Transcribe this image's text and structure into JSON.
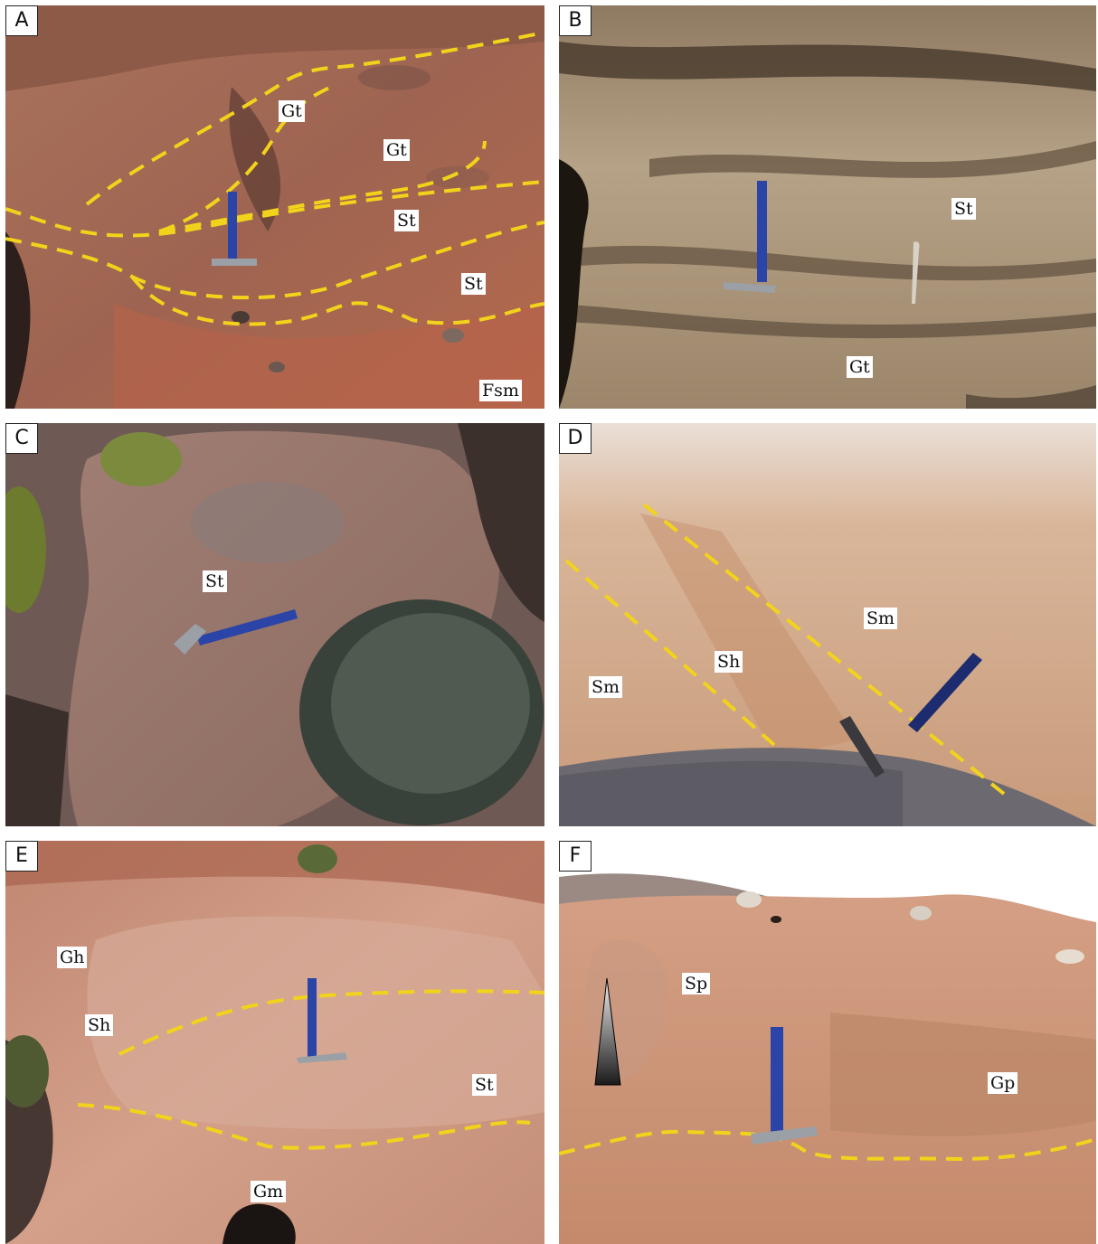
{
  "colors": {
    "contact_line": "#f2d31b",
    "label_background": "#ffffff"
  },
  "panels": [
    {
      "letter": "A",
      "labels": [
        "Gt",
        "Gt",
        "St",
        "St",
        "Fsm"
      ]
    },
    {
      "letter": "B",
      "labels": [
        "St",
        "Gt"
      ]
    },
    {
      "letter": "C",
      "labels": [
        "St"
      ]
    },
    {
      "letter": "D",
      "labels": [
        "Sm",
        "Sh",
        "Sm"
      ]
    },
    {
      "letter": "E",
      "labels": [
        "Gh",
        "Sh",
        "St",
        "Gm"
      ]
    },
    {
      "letter": "F",
      "labels": [
        "Sp",
        "Gp"
      ]
    }
  ]
}
